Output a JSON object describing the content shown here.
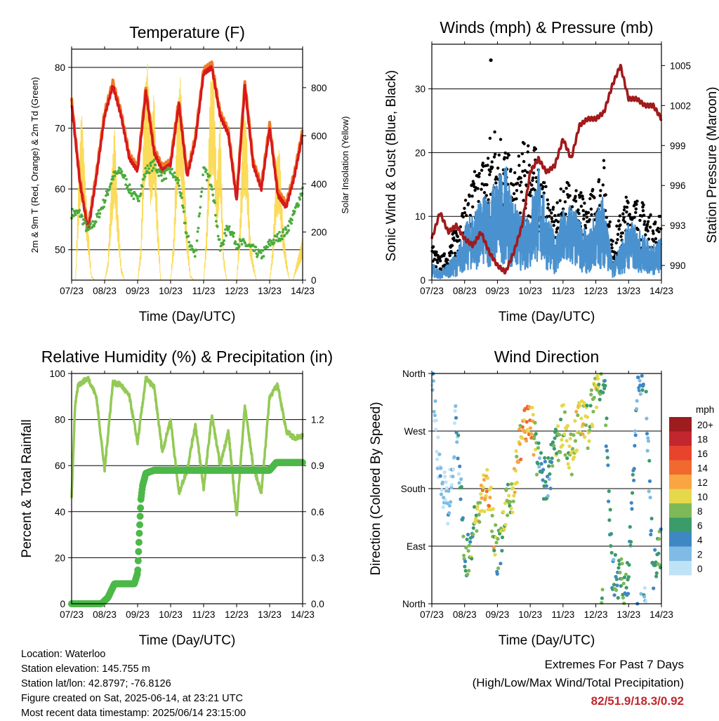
{
  "x_ticks": [
    "07/23",
    "08/23",
    "09/23",
    "10/23",
    "11/23",
    "12/23",
    "13/23",
    "14/23"
  ],
  "colors": {
    "temp2m": "#d7191c",
    "temp9m": "#f07b29",
    "dewpoint": "#4aab3c",
    "solar": "#fbd748",
    "wind": "#4a92cf",
    "gust": "#000000",
    "pressure": "#a11a1c",
    "rh": "#93c955",
    "precip": "#4cb848"
  },
  "chart_data": [
    {
      "type": "line",
      "title": "Temperature (F)",
      "xlabel": "Time (Day/UTC)",
      "ylabel": "2m & 9m T (Red, Orange) & 2m Td (Green)",
      "ylabel_right": "Solar Insolation (Yellow)",
      "ylim": [
        45,
        83
      ],
      "y_ticks": [
        50,
        60,
        70,
        80
      ],
      "ylim_right": [
        0,
        960
      ],
      "y_ticks_right": [
        0,
        200,
        400,
        600,
        800
      ],
      "x": [
        7.0,
        7.25,
        7.5,
        7.75,
        8.0,
        8.25,
        8.5,
        8.75,
        9.0,
        9.25,
        9.5,
        9.75,
        10.0,
        10.25,
        10.5,
        10.75,
        11.0,
        11.25,
        11.5,
        11.75,
        12.0,
        12.25,
        12.5,
        12.75,
        13.0,
        13.25,
        13.5,
        13.75,
        14.0
      ],
      "series": [
        {
          "name": "2m T",
          "values": [
            74,
            61,
            53,
            62,
            72,
            77,
            72,
            65,
            63,
            76,
            66,
            63,
            64,
            74,
            62,
            68,
            79,
            80,
            72,
            69,
            58,
            77,
            64,
            60,
            70,
            59,
            57,
            62,
            69
          ]
        },
        {
          "name": "2m Td",
          "values": [
            56,
            56,
            53,
            55,
            58,
            62,
            63,
            60,
            58,
            63,
            64,
            62,
            63,
            61,
            52,
            49,
            63,
            61,
            50,
            54,
            51,
            51,
            50,
            49,
            51,
            52,
            53,
            56,
            60
          ]
        },
        {
          "name": "Solar Insolation",
          "x": [
            7.0,
            7.12,
            7.2,
            7.3,
            7.45,
            7.6,
            7.7,
            8.0,
            8.1,
            8.2,
            8.3,
            8.4,
            8.5,
            8.6,
            8.7,
            9.0,
            9.1,
            9.2,
            9.3,
            9.4,
            9.5,
            9.6,
            9.7,
            10.0,
            10.1,
            10.2,
            10.3,
            10.4,
            10.5,
            10.6,
            10.7,
            11.0,
            11.1,
            11.2,
            11.3,
            11.4,
            11.5,
            11.6,
            11.7,
            12.0,
            12.1,
            12.2,
            12.3,
            12.4,
            12.5,
            12.6,
            12.7,
            13.0,
            13.1,
            13.2,
            13.3,
            13.4,
            13.5,
            13.6,
            13.7,
            14.0
          ],
          "values": [
            0,
            0,
            380,
            720,
            330,
            20,
            0,
            0,
            80,
            400,
            650,
            300,
            60,
            0,
            0,
            0,
            150,
            750,
            900,
            600,
            800,
            300,
            0,
            0,
            200,
            700,
            850,
            500,
            200,
            20,
            0,
            0,
            250,
            820,
            880,
            400,
            700,
            120,
            0,
            0,
            250,
            700,
            650,
            200,
            80,
            0,
            0,
            0,
            150,
            500,
            550,
            250,
            100,
            0,
            0,
            180
          ]
        }
      ]
    },
    {
      "type": "scatter",
      "title": "Winds (mph) & Pressure (mb)",
      "xlabel": "Time (Day/UTC)",
      "ylabel": "Sonic Wind & Gust (Blue, Black)",
      "ylabel_right": "Station Pressure (Maroon)",
      "ylim": [
        0,
        37
      ],
      "y_ticks": [
        0,
        10,
        20,
        30
      ],
      "ylim_right": [
        988.9,
        1006.6
      ],
      "y_ticks_right": [
        990,
        993,
        996,
        999,
        1002,
        1005
      ],
      "x": [
        7.0,
        7.25,
        7.5,
        7.75,
        8.0,
        8.25,
        8.5,
        8.75,
        9.0,
        9.25,
        9.5,
        9.75,
        10.0,
        10.25,
        10.5,
        10.75,
        11.0,
        11.25,
        11.5,
        11.75,
        12.0,
        12.25,
        12.5,
        12.75,
        13.0,
        13.25,
        13.5,
        13.75,
        14.0
      ],
      "series": [
        {
          "name": "Sonic Wind",
          "values": [
            2,
            1,
            2,
            3,
            6,
            8,
            9,
            10,
            12,
            13,
            9,
            7,
            9,
            13,
            8,
            5,
            8,
            9,
            7,
            5,
            8,
            10,
            2,
            4,
            7,
            6,
            5,
            4,
            5
          ]
        },
        {
          "name": "Gust",
          "values": [
            5,
            3,
            4,
            8,
            10,
            14,
            16,
            19,
            22,
            18,
            14,
            18,
            20,
            16,
            12,
            9,
            13,
            14,
            12,
            10,
            14,
            16,
            5,
            9,
            12,
            11,
            10,
            8,
            9
          ]
        },
        {
          "name": "Station Pressure",
          "values": [
            992,
            994,
            992.5,
            993,
            992,
            991.5,
            992.5,
            991,
            990,
            989.5,
            991,
            993,
            997,
            998,
            997,
            997.5,
            999.5,
            998,
            1000.5,
            1001,
            1001,
            1001.5,
            1003.5,
            1005,
            1002.5,
            1002.5,
            1002,
            1002,
            1001
          ]
        }
      ],
      "extra_points": [
        {
          "x": 8.8,
          "y": 34.5
        }
      ]
    },
    {
      "type": "line",
      "title": "Relative Humidity (%) & Precipitation (in)",
      "xlabel": "Time (Day/UTC)",
      "ylabel": "Percent & Total Rainfall",
      "ylim": [
        0,
        100
      ],
      "y_ticks": [
        0,
        20,
        40,
        60,
        80,
        100
      ],
      "ylim_right": [
        0,
        1.5
      ],
      "y_ticks_right": [
        "0.0",
        "0.3",
        "0.6",
        "0.9",
        "1.2"
      ],
      "x": [
        7.0,
        7.1,
        7.2,
        7.5,
        7.75,
        8.0,
        8.25,
        8.5,
        8.75,
        9.0,
        9.25,
        9.5,
        9.75,
        10.0,
        10.25,
        10.5,
        10.75,
        11.0,
        11.25,
        11.5,
        11.75,
        12.0,
        12.25,
        12.5,
        12.75,
        13.0,
        13.25,
        13.5,
        13.75,
        14.0
      ],
      "series": [
        {
          "name": "Relative Humidity",
          "values": [
            46,
            85,
            95,
            98,
            90,
            58,
            96,
            95,
            90,
            70,
            98,
            94,
            66,
            80,
            48,
            58,
            78,
            50,
            82,
            60,
            75,
            38,
            86,
            60,
            48,
            90,
            95,
            75,
            72,
            73
          ]
        },
        {
          "name": "Total Rainfall",
          "x": [
            7.0,
            7.5,
            7.9,
            8.0,
            8.1,
            8.3,
            8.5,
            8.9,
            9.0,
            9.05,
            9.1,
            9.15,
            9.25,
            9.5,
            10.0,
            11.0,
            12.0,
            12.5,
            12.9,
            13.0,
            13.2,
            13.5,
            13.9,
            14.0
          ],
          "values": [
            0,
            0,
            0,
            0.02,
            0.04,
            0.13,
            0.13,
            0.13,
            0.2,
            0.45,
            0.68,
            0.77,
            0.85,
            0.87,
            0.87,
            0.87,
            0.87,
            0.87,
            0.87,
            0.87,
            0.92,
            0.92,
            0.92,
            0.92
          ]
        }
      ]
    },
    {
      "type": "scatter",
      "title": "Wind Direction",
      "xlabel": "Time (Day/UTC)",
      "ylabel": "Direction (Colored By Speed)",
      "ylim": [
        0,
        360
      ],
      "y_tick_labels": [
        "North",
        "East",
        "South",
        "West",
        "North"
      ],
      "x": [
        7.0,
        7.25,
        7.5,
        7.75,
        8.0,
        8.25,
        8.5,
        8.75,
        9.0,
        9.25,
        9.5,
        9.75,
        10.0,
        10.25,
        10.5,
        10.75,
        11.0,
        11.25,
        11.5,
        11.75,
        12.0,
        12.25,
        12.5,
        12.75,
        13.0,
        13.25,
        13.5,
        13.75,
        14.0
      ],
      "directions": [
        355,
        200,
        150,
        300,
        60,
        110,
        160,
        185,
        70,
        140,
        185,
        270,
        290,
        220,
        185,
        240,
        280,
        230,
        290,
        275,
        335,
        355,
        50,
        40,
        30,
        345,
        355,
        40,
        90
      ],
      "speeds": [
        1,
        1,
        1,
        2,
        6,
        7,
        11,
        12,
        6,
        8,
        9,
        12,
        13,
        5,
        4,
        7,
        9,
        8,
        11,
        8,
        10,
        6,
        4,
        7,
        5,
        4,
        3,
        5,
        6
      ],
      "legend_title": "mph",
      "legend_labels": [
        "20+",
        "18",
        "16",
        "14",
        "12",
        "10",
        "8",
        "6",
        "4",
        "2",
        "0"
      ],
      "legend_colors": [
        "#9e1b1e",
        "#c1272d",
        "#e8432d",
        "#f1692e",
        "#f8a542",
        "#e5d84a",
        "#7db957",
        "#3b9b6a",
        "#3f87c2",
        "#7fbbe4",
        "#bfe3f6"
      ]
    }
  ],
  "info": {
    "location": "Location: Waterloo",
    "elevation": "Station elevation: 145.755 m",
    "latlon": "Station lat/lon: 42.8797; -76.8126",
    "created": "Figure created on Sat, 2025-06-14, at 23:21 UTC",
    "recent": "Most recent data timestamp: 2025/06/14 23:15:00"
  },
  "extremes": {
    "title": "Extremes For Past 7 Days",
    "subtitle": "(High/Low/Max Wind/Total Precipitation)",
    "values": "82/51.9/18.3/0.92"
  }
}
